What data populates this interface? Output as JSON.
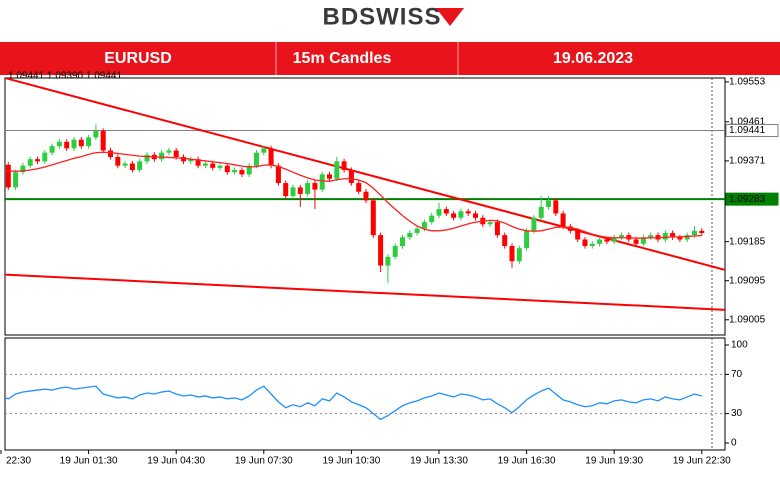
{
  "logo": "BDSWISS",
  "header": {
    "symbol": "EURUSD",
    "timeframe": "15m Candles",
    "date": "19.06.2023"
  },
  "chart_data": {
    "type": "candlestick",
    "info": "1.09441 1.09390 1.09441",
    "categories": [
      "22:30",
      null,
      null,
      null,
      null,
      null,
      null,
      null,
      null,
      null,
      null,
      null,
      "19 Jun 01:30",
      null,
      null,
      null,
      null,
      null,
      null,
      null,
      null,
      null,
      null,
      null,
      "19 Jun 04:30",
      null,
      null,
      null,
      null,
      null,
      null,
      null,
      null,
      null,
      null,
      null,
      "19 Jun 07:30",
      null,
      null,
      null,
      null,
      null,
      null,
      null,
      null,
      null,
      null,
      null,
      "19 Jun 10:30",
      null,
      null,
      null,
      null,
      null,
      null,
      null,
      null,
      null,
      null,
      null,
      "19 Jun 13:30",
      null,
      null,
      null,
      null,
      null,
      null,
      null,
      null,
      null,
      null,
      null,
      "19 Jun 16:30",
      null,
      null,
      null,
      null,
      null,
      null,
      null,
      null,
      null,
      null,
      null,
      "19 Jun 19:30",
      null,
      null,
      null,
      null,
      null,
      null,
      null,
      null,
      null,
      null,
      null,
      "19 Jun 22:30"
    ],
    "open": [
      1.0938,
      1.09362,
      1.0931,
      1.09345,
      1.0936,
      1.09375,
      1.0937,
      1.0939,
      1.09405,
      1.09415,
      1.094,
      1.0942,
      1.09405,
      1.09425,
      1.0944,
      1.09395,
      1.0938,
      1.0936,
      1.09365,
      1.0935,
      1.0937,
      1.09385,
      1.09375,
      1.0939,
      1.09395,
      1.0938,
      1.0937,
      1.09375,
      1.0936,
      1.09365,
      1.09355,
      1.0936,
      1.09345,
      1.0935,
      1.0934,
      1.0936,
      1.0939,
      1.094,
      1.0936,
      1.0932,
      1.0929,
      1.0931,
      1.09295,
      1.0932,
      1.09305,
      1.0934,
      1.0933,
      1.0937,
      1.0935,
      1.0932,
      1.093,
      1.0928,
      1.092,
      1.0913,
      1.0915,
      1.09175,
      1.09195,
      1.09205,
      1.09215,
      1.0923,
      1.09245,
      1.0926,
      1.0925,
      1.0924,
      1.09255,
      1.0925,
      1.0924,
      1.09225,
      1.0923,
      1.092,
      1.09175,
      1.0914,
      1.0917,
      1.0921,
      1.0924,
      1.09265,
      1.0928,
      1.0925,
      1.0922,
      1.0921,
      1.0919,
      1.09175,
      1.0918,
      1.0919,
      1.09185,
      1.09195,
      1.092,
      1.0919,
      1.0918,
      1.09195,
      1.092,
      1.0919,
      1.09205,
      1.09195,
      1.0919,
      1.092,
      1.0921
    ],
    "high": [
      1.09386,
      1.09368,
      1.09351,
      1.09366,
      1.09381,
      1.09381,
      1.09396,
      1.09411,
      1.09421,
      1.09421,
      1.09426,
      1.09426,
      1.09431,
      1.09455,
      1.09446,
      1.09401,
      1.09386,
      1.09371,
      1.09371,
      1.09376,
      1.09391,
      1.09391,
      1.09396,
      1.09401,
      1.09401,
      1.09386,
      1.09381,
      1.09381,
      1.09371,
      1.09371,
      1.09366,
      1.09366,
      1.09356,
      1.09356,
      1.09366,
      1.09396,
      1.09406,
      1.09406,
      1.09366,
      1.09326,
      1.09316,
      1.09316,
      1.09326,
      1.09326,
      1.09346,
      1.09346,
      1.0938,
      1.09376,
      1.09356,
      1.09326,
      1.09306,
      1.09286,
      1.09206,
      1.09156,
      1.09181,
      1.09201,
      1.09211,
      1.09221,
      1.09236,
      1.09251,
      1.09275,
      1.09266,
      1.09256,
      1.09261,
      1.09261,
      1.09256,
      1.09246,
      1.09236,
      1.09236,
      1.09206,
      1.09181,
      1.09176,
      1.09216,
      1.09246,
      1.0929,
      1.0929,
      1.09286,
      1.09256,
      1.09226,
      1.09216,
      1.09196,
      1.09186,
      1.09196,
      1.09196,
      1.09201,
      1.09206,
      1.09206,
      1.09196,
      1.09201,
      1.09206,
      1.09206,
      1.09211,
      1.09211,
      1.09201,
      1.09206,
      1.09221,
      1.09216
    ],
    "low": [
      1.09356,
      1.09304,
      1.09304,
      1.09339,
      1.09354,
      1.09364,
      1.09364,
      1.09384,
      1.09399,
      1.09394,
      1.09394,
      1.09399,
      1.09399,
      1.09419,
      1.09389,
      1.09374,
      1.09354,
      1.09354,
      1.09344,
      1.09344,
      1.09364,
      1.09369,
      1.09369,
      1.09384,
      1.09374,
      1.09364,
      1.09364,
      1.09354,
      1.09354,
      1.09349,
      1.09349,
      1.09339,
      1.09339,
      1.09334,
      1.09334,
      1.09354,
      1.09384,
      1.09354,
      1.09314,
      1.09284,
      1.09284,
      1.09265,
      1.09289,
      1.0926,
      1.09299,
      1.09324,
      1.09324,
      1.09344,
      1.09314,
      1.09294,
      1.09274,
      1.09194,
      1.09115,
      1.0909,
      1.09144,
      1.09169,
      1.09189,
      1.09199,
      1.09209,
      1.09224,
      1.09239,
      1.09244,
      1.09234,
      1.09234,
      1.09244,
      1.09234,
      1.09219,
      1.09219,
      1.09194,
      1.09169,
      1.09125,
      1.09134,
      1.09164,
      1.09204,
      1.09234,
      1.09259,
      1.09244,
      1.09214,
      1.09204,
      1.09184,
      1.09169,
      1.09169,
      1.09174,
      1.09179,
      1.09179,
      1.09189,
      1.09184,
      1.09174,
      1.09174,
      1.09189,
      1.09184,
      1.09184,
      1.09189,
      1.09184,
      1.09184,
      1.09194,
      1.09199
    ],
    "close": [
      1.09362,
      1.0931,
      1.09345,
      1.0936,
      1.09375,
      1.0937,
      1.0939,
      1.09405,
      1.09415,
      1.094,
      1.0942,
      1.09405,
      1.09425,
      1.0944,
      1.09395,
      1.0938,
      1.0936,
      1.09365,
      1.0935,
      1.0937,
      1.09385,
      1.09375,
      1.0939,
      1.09395,
      1.0938,
      1.0937,
      1.09375,
      1.0936,
      1.09365,
      1.09355,
      1.0936,
      1.09345,
      1.0935,
      1.0934,
      1.0936,
      1.0939,
      1.094,
      1.0936,
      1.0932,
      1.0929,
      1.0931,
      1.09295,
      1.0932,
      1.09305,
      1.0934,
      1.0933,
      1.0937,
      1.0935,
      1.0932,
      1.093,
      1.0928,
      1.092,
      1.0913,
      1.0915,
      1.09175,
      1.09195,
      1.09205,
      1.09215,
      1.0923,
      1.09245,
      1.0926,
      1.0925,
      1.0924,
      1.09255,
      1.0925,
      1.0924,
      1.09225,
      1.0923,
      1.092,
      1.09175,
      1.0914,
      1.0917,
      1.0921,
      1.0924,
      1.09265,
      1.0928,
      1.0925,
      1.0922,
      1.0921,
      1.0919,
      1.09175,
      1.0918,
      1.0919,
      1.09185,
      1.09195,
      1.092,
      1.0919,
      1.0918,
      1.09195,
      1.092,
      1.0919,
      1.09205,
      1.09195,
      1.0919,
      1.092,
      1.0921,
      1.09205
    ],
    "up_color": "#2ecc40",
    "down_color": "#ff0000",
    "ylim": [
      1.0897,
      1.09562
    ],
    "yticks": [
      1.09553,
      1.09461,
      1.09371,
      1.09185,
      1.09095,
      1.09005
    ],
    "ma": {
      "color": "#ff2020",
      "values": [
        1.0935,
        1.09348,
        1.09347,
        1.09348,
        1.0935,
        1.09353,
        1.09357,
        1.09362,
        1.09367,
        1.09372,
        1.09377,
        1.09381,
        1.09386,
        1.0939,
        1.09391,
        1.0939,
        1.09388,
        1.09386,
        1.09384,
        1.09382,
        1.09381,
        1.0938,
        1.0938,
        1.09379,
        1.09378,
        1.09377,
        1.09375,
        1.09373,
        1.09371,
        1.09369,
        1.09367,
        1.09365,
        1.09362,
        1.09359,
        1.09357,
        1.09358,
        1.09361,
        1.09362,
        1.09358,
        1.09352,
        1.09345,
        1.09338,
        1.09332,
        1.09327,
        1.09325,
        1.09324,
        1.09328,
        1.0933,
        1.0933,
        1.09327,
        1.09321,
        1.09308,
        1.09292,
        1.09275,
        1.0926,
        1.09245,
        1.09232,
        1.09221,
        1.09214,
        1.0921,
        1.0921,
        1.09212,
        1.09216,
        1.09221,
        1.09226,
        1.0923,
        1.09232,
        1.09234,
        1.09233,
        1.09228,
        1.0922,
        1.09214,
        1.0921,
        1.09209,
        1.0921,
        1.09214,
        1.09218,
        1.09219,
        1.09217,
        1.09214,
        1.09208,
        1.09202,
        1.09198,
        1.09195,
        1.09194,
        1.09194,
        1.09194,
        1.09193,
        1.09193,
        1.09194,
        1.09194,
        1.09195,
        1.09196,
        1.09196,
        1.09197,
        1.09198,
        1.09199
      ]
    },
    "levels": [
      {
        "value": 1.09441,
        "color": "#808080"
      },
      {
        "value": 1.09283,
        "color": "#008000"
      }
    ],
    "trendlines": [
      {
        "values": [
          1.09562,
          1.0912
        ],
        "color": "#ff0000"
      },
      {
        "values": [
          1.09109,
          1.09028
        ],
        "color": "#ff0000"
      }
    ],
    "rsi": {
      "color": "#1e90ff",
      "ylim": [
        0,
        100
      ],
      "yticks": [
        0,
        30,
        70,
        100
      ],
      "values": [
        48,
        45,
        50,
        52,
        53,
        54,
        55,
        54,
        56,
        57,
        55,
        56,
        57,
        58,
        50,
        48,
        46,
        47,
        45,
        49,
        51,
        50,
        52,
        53,
        50,
        48,
        49,
        47,
        48,
        46,
        47,
        45,
        46,
        44,
        48,
        54,
        58,
        50,
        42,
        36,
        39,
        37,
        41,
        38,
        45,
        43,
        51,
        47,
        42,
        39,
        36,
        30,
        24,
        28,
        33,
        38,
        41,
        43,
        46,
        48,
        51,
        49,
        47,
        50,
        49,
        47,
        44,
        45,
        40,
        36,
        31,
        37,
        44,
        49,
        53,
        56,
        50,
        44,
        42,
        39,
        37,
        38,
        41,
        40,
        43,
        44,
        42,
        41,
        44,
        45,
        43,
        47,
        45,
        44,
        47,
        50,
        48
      ]
    }
  }
}
